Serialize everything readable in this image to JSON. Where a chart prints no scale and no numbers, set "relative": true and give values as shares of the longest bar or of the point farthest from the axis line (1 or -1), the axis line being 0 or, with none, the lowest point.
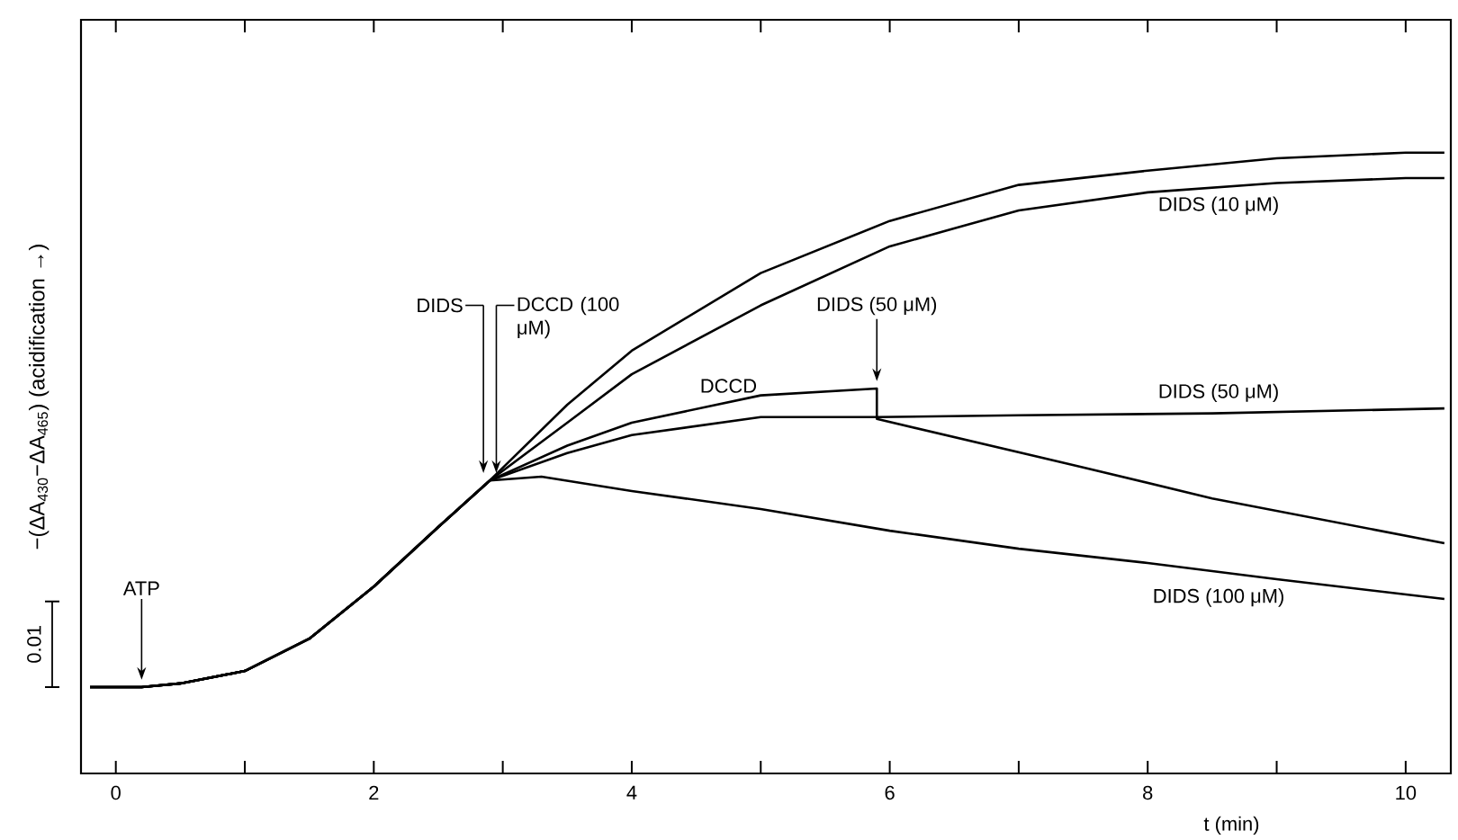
{
  "chart_data": {
    "type": "line",
    "relative": true,
    "xlabel": "t (min)",
    "ylabel": "−(ΔA$_{430}$−ΔA$_{465}$) (acidification →)",
    "xlim": [
      -0.27,
      10.35
    ],
    "xticks": [
      0,
      {
        "value": 1,
        "label": null
      },
      2,
      {
        "value": 3,
        "label": null
      },
      4,
      {
        "value": 5,
        "label": null
      },
      6,
      {
        "value": 7,
        "label": null
      },
      8,
      {
        "value": 9,
        "label": null
      },
      10
    ],
    "series": [
      {
        "color": "#000000",
        "x": [
          -0.2,
          0.2,
          0.5,
          1.0,
          1.5,
          2.0,
          2.5,
          2.9,
          3.5,
          4,
          5,
          6,
          7,
          8,
          9,
          10,
          10.3
        ],
        "values": [
          0.139,
          0.139,
          0.145,
          0.165,
          0.217,
          0.301,
          0.397,
          0.472,
          0.594,
          0.681,
          0.806,
          0.89,
          0.948,
          0.971,
          0.991,
          1.0,
          1.0
        ]
      },
      {
        "name": "DIDS (10 μM)",
        "color": "#000000",
        "x": [
          -0.2,
          0.2,
          0.5,
          1.0,
          1.5,
          2.0,
          2.5,
          2.9,
          3.5,
          4,
          5,
          6,
          7,
          8,
          9,
          10,
          10.3
        ],
        "values": [
          0.139,
          0.139,
          0.145,
          0.165,
          0.217,
          0.301,
          0.397,
          0.472,
          0.565,
          0.643,
          0.754,
          0.849,
          0.907,
          0.936,
          0.951,
          0.959,
          0.959
        ]
      },
      {
        "name": "DCCD",
        "color": "#000000",
        "x": [
          -0.2,
          0.2,
          0.5,
          1.0,
          1.5,
          2.0,
          2.5,
          2.9,
          3.5,
          4,
          5,
          5.9,
          5.9,
          7.5,
          8.5,
          10.3
        ],
        "values": [
          0.139,
          0.139,
          0.145,
          0.165,
          0.217,
          0.301,
          0.397,
          0.472,
          0.528,
          0.565,
          0.609,
          0.62,
          0.571,
          0.493,
          0.443,
          0.371
        ]
      },
      {
        "name": "DIDS (50 μM)",
        "color": "#000000",
        "x": [
          -0.2,
          0.2,
          0.5,
          1.0,
          1.5,
          2.0,
          2.5,
          2.9,
          3.5,
          4,
          5,
          5.9,
          7,
          8.5,
          10.3
        ],
        "values": [
          0.139,
          0.139,
          0.145,
          0.165,
          0.217,
          0.301,
          0.397,
          0.472,
          0.516,
          0.545,
          0.574,
          0.574,
          0.577,
          0.58,
          0.588
        ]
      },
      {
        "name": "DIDS (100 μM)",
        "color": "#000000",
        "x": [
          -0.2,
          0.2,
          0.5,
          1.0,
          1.5,
          2.0,
          2.5,
          2.9,
          3.3,
          4,
          5,
          6,
          7,
          8,
          9,
          10.3
        ],
        "values": [
          0.139,
          0.139,
          0.145,
          0.165,
          0.217,
          0.301,
          0.397,
          0.472,
          0.478,
          0.455,
          0.426,
          0.391,
          0.362,
          0.339,
          0.313,
          0.281
        ]
      }
    ],
    "annotations": [
      {
        "text": "ATP",
        "x": 0.2,
        "y": 0.139
      },
      {
        "text": "DIDS",
        "x": 2.85,
        "y": 0.472
      },
      {
        "text": "DCCD (100 μM)",
        "x": 2.95,
        "y": 0.472
      },
      {
        "text": "DIDS (50 μM)",
        "x": 5.9,
        "y": 0.62
      },
      "0.01"
    ]
  }
}
